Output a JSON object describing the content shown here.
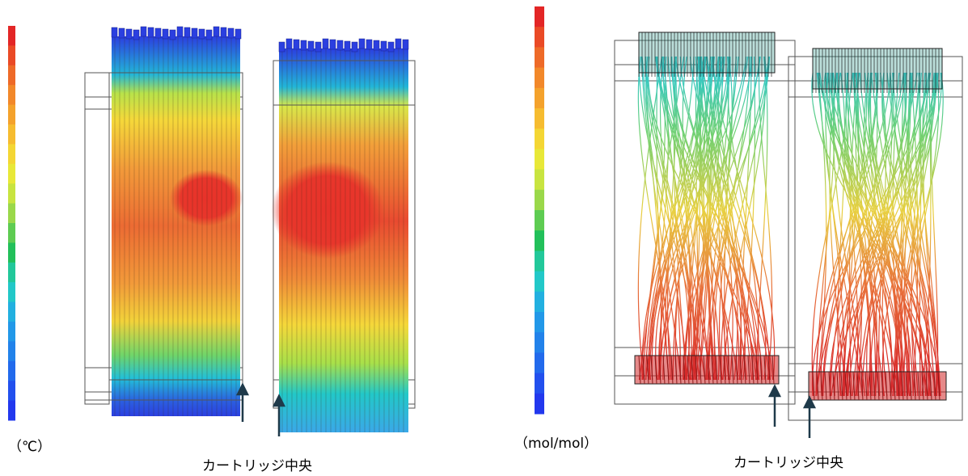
{
  "left_panel": {
    "unit": "（℃）",
    "annotation": "カートリッジ中央"
  },
  "right_panel": {
    "unit": "（mol/mol）",
    "annotation": "カートリッジ中央"
  }
}
